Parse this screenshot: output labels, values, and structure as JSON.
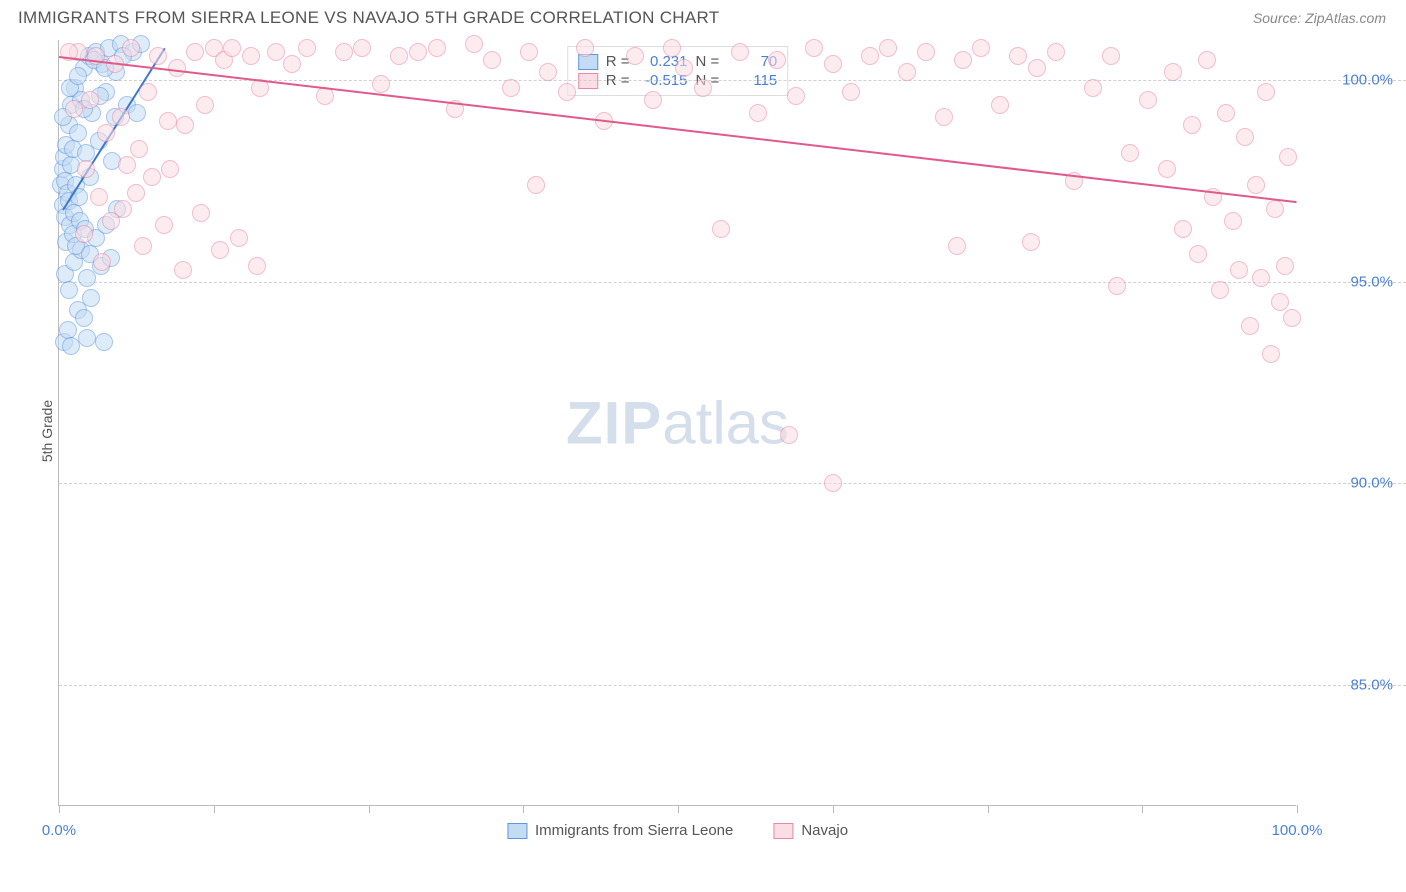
{
  "title": "IMMIGRANTS FROM SIERRA LEONE VS NAVAJO 5TH GRADE CORRELATION CHART",
  "source_label": "Source: ",
  "source_value": "ZipAtlas.com",
  "y_axis_label": "5th Grade",
  "watermark_bold": "ZIP",
  "watermark_light": "atlas",
  "chart": {
    "type": "scatter",
    "background_color": "#ffffff",
    "grid_color": "#d0d0d0",
    "axis_color": "#bbbbbb",
    "tick_label_color": "#4a7fd6",
    "xlim": [
      0,
      100
    ],
    "ylim": [
      82,
      101
    ],
    "ytick_values": [
      85.0,
      90.0,
      95.0,
      100.0
    ],
    "ytick_labels": [
      "85.0%",
      "90.0%",
      "95.0%",
      "100.0%"
    ],
    "xtick_values": [
      0,
      12.5,
      25,
      37.5,
      50,
      62.5,
      75,
      87.5,
      100
    ],
    "xtick_labels": {
      "0": "0.0%",
      "100": "100.0%"
    },
    "marker_radius": 9,
    "marker_stroke_width": 1.5,
    "series": [
      {
        "id": "sierra_leone",
        "label": "Immigrants from Sierra Leone",
        "fill": "#c4dbf4",
        "stroke": "#5e97df",
        "fill_opacity": 0.55,
        "R_label": "R =",
        "R": "0.231",
        "N_label": "N =",
        "N": "70",
        "trend": {
          "x1": 0.3,
          "y1": 96.8,
          "x2": 8.5,
          "y2": 100.8,
          "color": "#3b78cc"
        },
        "points": [
          [
            0.2,
            97.4
          ],
          [
            0.3,
            97.8
          ],
          [
            0.3,
            96.9
          ],
          [
            0.4,
            98.1
          ],
          [
            0.5,
            97.5
          ],
          [
            0.5,
            96.6
          ],
          [
            0.6,
            98.4
          ],
          [
            0.7,
            97.2
          ],
          [
            0.8,
            98.9
          ],
          [
            0.8,
            97.0
          ],
          [
            0.9,
            96.4
          ],
          [
            1.0,
            99.4
          ],
          [
            1.0,
            97.9
          ],
          [
            1.1,
            98.3
          ],
          [
            1.2,
            96.7
          ],
          [
            1.3,
            99.8
          ],
          [
            1.4,
            97.4
          ],
          [
            1.5,
            98.7
          ],
          [
            1.6,
            97.1
          ],
          [
            1.8,
            99.5
          ],
          [
            2.0,
            100.3
          ],
          [
            2.2,
            98.2
          ],
          [
            2.4,
            100.6
          ],
          [
            2.5,
            97.6
          ],
          [
            2.7,
            99.2
          ],
          [
            3.0,
            100.7
          ],
          [
            3.2,
            98.5
          ],
          [
            3.5,
            100.4
          ],
          [
            3.8,
            99.7
          ],
          [
            4.0,
            100.8
          ],
          [
            4.3,
            98.0
          ],
          [
            4.6,
            100.2
          ],
          [
            5.0,
            100.9
          ],
          [
            5.5,
            99.4
          ],
          [
            6.0,
            100.7
          ],
          [
            6.6,
            100.9
          ],
          [
            0.5,
            95.2
          ],
          [
            0.8,
            94.8
          ],
          [
            1.2,
            95.5
          ],
          [
            1.5,
            94.3
          ],
          [
            1.8,
            95.8
          ],
          [
            2.0,
            94.1
          ],
          [
            2.3,
            95.1
          ],
          [
            2.6,
            94.6
          ],
          [
            0.4,
            93.5
          ],
          [
            0.7,
            93.8
          ],
          [
            1.0,
            93.4
          ],
          [
            2.3,
            93.6
          ],
          [
            3.6,
            93.5
          ],
          [
            0.6,
            96.0
          ],
          [
            1.1,
            96.2
          ],
          [
            1.4,
            95.9
          ],
          [
            1.7,
            96.5
          ],
          [
            2.1,
            96.3
          ],
          [
            2.5,
            95.7
          ],
          [
            3.0,
            96.1
          ],
          [
            3.4,
            95.4
          ],
          [
            3.8,
            96.4
          ],
          [
            4.2,
            95.6
          ],
          [
            4.7,
            96.8
          ],
          [
            0.3,
            99.1
          ],
          [
            0.9,
            99.8
          ],
          [
            1.5,
            100.1
          ],
          [
            2.0,
            99.3
          ],
          [
            2.8,
            100.5
          ],
          [
            3.3,
            99.6
          ],
          [
            3.7,
            100.3
          ],
          [
            4.5,
            99.1
          ],
          [
            5.2,
            100.6
          ],
          [
            6.3,
            99.2
          ]
        ]
      },
      {
        "id": "navajo",
        "label": "Navajo",
        "fill": "#fadde5",
        "stroke": "#e987a5",
        "fill_opacity": 0.55,
        "R_label": "R =",
        "R": "-0.515",
        "N_label": "N =",
        "N": "115",
        "trend": {
          "x1": 0,
          "y1": 100.6,
          "x2": 100,
          "y2": 97.0,
          "color": "#e05a8a"
        },
        "points": [
          [
            1.5,
            100.7
          ],
          [
            2.5,
            99.5
          ],
          [
            3.0,
            100.6
          ],
          [
            3.8,
            98.7
          ],
          [
            4.5,
            100.4
          ],
          [
            5.0,
            99.1
          ],
          [
            5.8,
            100.8
          ],
          [
            6.5,
            98.3
          ],
          [
            7.2,
            99.7
          ],
          [
            8.0,
            100.6
          ],
          [
            8.8,
            99.0
          ],
          [
            9.5,
            100.3
          ],
          [
            10.2,
            98.9
          ],
          [
            11.0,
            100.7
          ],
          [
            11.8,
            99.4
          ],
          [
            12.5,
            100.8
          ],
          [
            13.3,
            100.5
          ],
          [
            14.0,
            100.8
          ],
          [
            15.5,
            100.6
          ],
          [
            16.2,
            99.8
          ],
          [
            17.5,
            100.7
          ],
          [
            18.8,
            100.4
          ],
          [
            20.0,
            100.8
          ],
          [
            21.5,
            99.6
          ],
          [
            23.0,
            100.7
          ],
          [
            24.5,
            100.8
          ],
          [
            26.0,
            99.9
          ],
          [
            27.5,
            100.6
          ],
          [
            29.0,
            100.7
          ],
          [
            30.5,
            100.8
          ],
          [
            32.0,
            99.3
          ],
          [
            33.5,
            100.9
          ],
          [
            35.0,
            100.5
          ],
          [
            36.5,
            99.8
          ],
          [
            38.0,
            100.7
          ],
          [
            39.5,
            100.2
          ],
          [
            41.0,
            99.7
          ],
          [
            42.5,
            100.8
          ],
          [
            44.0,
            99.0
          ],
          [
            46.5,
            100.6
          ],
          [
            48.0,
            99.5
          ],
          [
            49.5,
            100.8
          ],
          [
            50.5,
            100.3
          ],
          [
            52.0,
            99.8
          ],
          [
            55.0,
            100.7
          ],
          [
            56.5,
            99.2
          ],
          [
            58.0,
            100.5
          ],
          [
            59.5,
            99.6
          ],
          [
            61.0,
            100.8
          ],
          [
            62.5,
            100.4
          ],
          [
            64.0,
            99.7
          ],
          [
            65.5,
            100.6
          ],
          [
            67.0,
            100.8
          ],
          [
            68.5,
            100.2
          ],
          [
            70.0,
            100.7
          ],
          [
            71.5,
            99.1
          ],
          [
            73.0,
            100.5
          ],
          [
            74.5,
            100.8
          ],
          [
            76.0,
            99.4
          ],
          [
            77.5,
            100.6
          ],
          [
            79.0,
            100.3
          ],
          [
            80.5,
            100.7
          ],
          [
            82.0,
            97.5
          ],
          [
            83.5,
            99.8
          ],
          [
            85.0,
            100.6
          ],
          [
            86.5,
            98.2
          ],
          [
            88.0,
            99.5
          ],
          [
            89.5,
            97.8
          ],
          [
            90.0,
            100.2
          ],
          [
            90.8,
            96.3
          ],
          [
            91.5,
            98.9
          ],
          [
            92.0,
            95.7
          ],
          [
            92.7,
            100.5
          ],
          [
            93.2,
            97.1
          ],
          [
            93.8,
            94.8
          ],
          [
            94.3,
            99.2
          ],
          [
            94.8,
            96.5
          ],
          [
            95.3,
            95.3
          ],
          [
            95.8,
            98.6
          ],
          [
            96.2,
            93.9
          ],
          [
            96.7,
            97.4
          ],
          [
            97.1,
            95.1
          ],
          [
            97.5,
            99.7
          ],
          [
            97.9,
            93.2
          ],
          [
            98.2,
            96.8
          ],
          [
            98.6,
            94.5
          ],
          [
            99.0,
            95.4
          ],
          [
            99.3,
            98.1
          ],
          [
            99.6,
            94.1
          ],
          [
            38.5,
            97.4
          ],
          [
            53.5,
            96.3
          ],
          [
            72.5,
            95.9
          ],
          [
            78.5,
            96.0
          ],
          [
            85.5,
            94.9
          ],
          [
            62.5,
            90.0
          ],
          [
            59.0,
            91.2
          ],
          [
            2.0,
            96.2
          ],
          [
            3.5,
            95.5
          ],
          [
            5.2,
            96.8
          ],
          [
            6.8,
            95.9
          ],
          [
            8.5,
            96.4
          ],
          [
            10.0,
            95.3
          ],
          [
            11.5,
            96.7
          ],
          [
            13.0,
            95.8
          ],
          [
            14.5,
            96.1
          ],
          [
            16.0,
            95.4
          ],
          [
            0.8,
            100.7
          ],
          [
            1.2,
            99.3
          ],
          [
            2.2,
            97.8
          ],
          [
            3.2,
            97.1
          ],
          [
            4.2,
            96.5
          ],
          [
            5.5,
            97.9
          ],
          [
            6.2,
            97.2
          ],
          [
            7.5,
            97.6
          ],
          [
            9.0,
            97.8
          ]
        ]
      }
    ]
  }
}
